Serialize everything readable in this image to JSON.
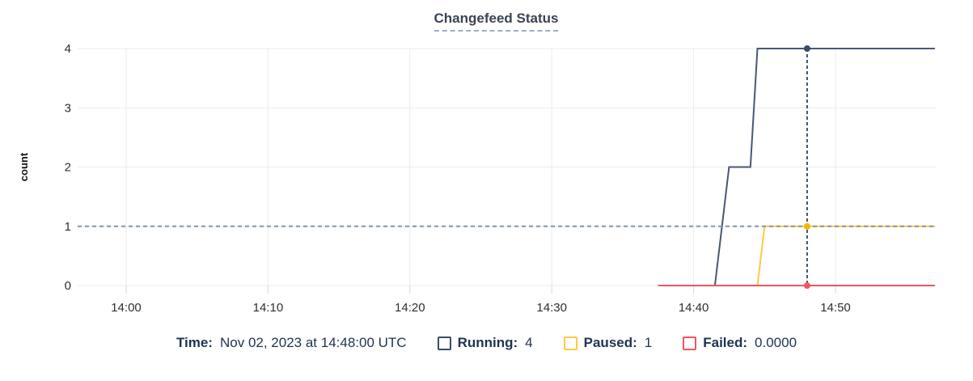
{
  "title": "Changefeed Status",
  "colors": {
    "grid": "#ebebeb",
    "tick": "#d9d9d9",
    "axis_text": "#2e2e2e",
    "title": "#394455",
    "title_underline": "#9db0c4",
    "legend_text": "#1f3352",
    "cursor_vertical": "#3d5469",
    "cursor_horizontal": "#8496a4"
  },
  "chart_data": {
    "type": "line",
    "title": "Changefeed Status",
    "xlabel": "",
    "ylabel": "count",
    "ylim": [
      0,
      4
    ],
    "y_ticks": [
      0,
      1,
      2,
      3,
      4
    ],
    "x_ticks": [
      "14:00",
      "14:10",
      "14:20",
      "14:30",
      "14:40",
      "14:50"
    ],
    "x_range": [
      "13:56:30",
      "14:57:00"
    ],
    "grid": true,
    "legend_position": "bottom",
    "series": [
      {
        "name": "Running",
        "color": "#475872",
        "dot_color": "#3a4c66",
        "points": [
          [
            "14:37:30",
            0
          ],
          [
            "14:41:30",
            0
          ],
          [
            "14:42:30",
            2
          ],
          [
            "14:44:00",
            2
          ],
          [
            "14:44:30",
            4
          ],
          [
            "14:57:00",
            4
          ]
        ]
      },
      {
        "name": "Paused",
        "color": "#ffc940",
        "dot_color": "#f7b500",
        "points": [
          [
            "14:37:30",
            0
          ],
          [
            "14:44:30",
            0
          ],
          [
            "14:45:00",
            1
          ],
          [
            "14:57:00",
            1
          ]
        ]
      },
      {
        "name": "Failed",
        "color": "#f2555d",
        "dot_color": "#f2555d",
        "points": [
          [
            "14:37:30",
            0
          ],
          [
            "14:57:00",
            0
          ]
        ]
      }
    ],
    "hover": {
      "time": "14:48:00",
      "cursor_y": 1,
      "values": {
        "Running": 4,
        "Paused": 1,
        "Failed": 0
      }
    }
  },
  "legend": {
    "time_label": "Time:",
    "time_value": "Nov 02, 2023 at 14:48:00 UTC",
    "items": [
      {
        "label": "Running:",
        "value": "4",
        "color": "#3a4c66"
      },
      {
        "label": "Paused:",
        "value": "1",
        "color": "#ffc940"
      },
      {
        "label": "Failed:",
        "value": "0.0000",
        "color": "#f2555d"
      }
    ]
  }
}
